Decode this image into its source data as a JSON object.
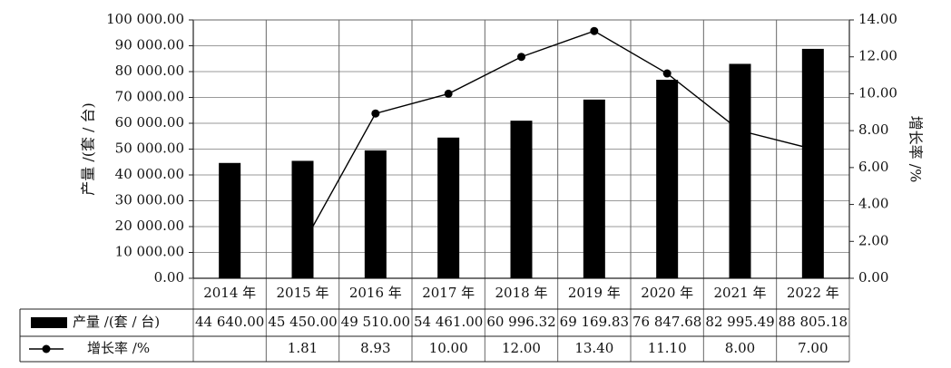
{
  "chart_data": {
    "type": "bar",
    "categories": [
      "2014 年",
      "2015 年",
      "2016 年",
      "2017 年",
      "2018 年",
      "2019 年",
      "2020 年",
      "2021 年",
      "2022 年"
    ],
    "series": [
      {
        "name": "产量 /(套 / 台)",
        "kind": "bar",
        "axis": "left",
        "color": "#000000",
        "values": [
          44640.0,
          45450.0,
          49510.0,
          54461.0,
          60996.32,
          69169.83,
          76847.68,
          82995.49,
          88805.18
        ],
        "labels": [
          "44 640.00",
          "45 450.00",
          "49 510.00",
          "54 461.00",
          "60 996.32",
          "69 169.83",
          "76 847.68",
          "82 995.49",
          "88 805.18"
        ]
      },
      {
        "name": "增长率 /%",
        "kind": "line",
        "axis": "right",
        "color": "#000000",
        "values": [
          null,
          1.81,
          8.93,
          10.0,
          12.0,
          13.4,
          11.1,
          8.0,
          7.0
        ],
        "labels": [
          "",
          "1.81",
          "8.93",
          "10.00",
          "12.00",
          "13.40",
          "11.10",
          "8.00",
          "7.00"
        ]
      }
    ],
    "y_left": {
      "label": "产量 /(套 / 台)",
      "range": [
        0,
        100000
      ],
      "ticks": [
        "0.00",
        "10 000.00",
        "20 000.00",
        "30 000.00",
        "40 000.00",
        "50 000.00",
        "60 000.00",
        "70 000.00",
        "80 000.00",
        "90 000.00",
        "100 000.00"
      ]
    },
    "y_right": {
      "label": "增长率 /%",
      "range": [
        0,
        14
      ],
      "ticks": [
        "0.00",
        "2.00",
        "4.00",
        "6.00",
        "8.00",
        "10.00",
        "12.00",
        "14.00"
      ]
    },
    "grid": true,
    "data_table": true
  }
}
